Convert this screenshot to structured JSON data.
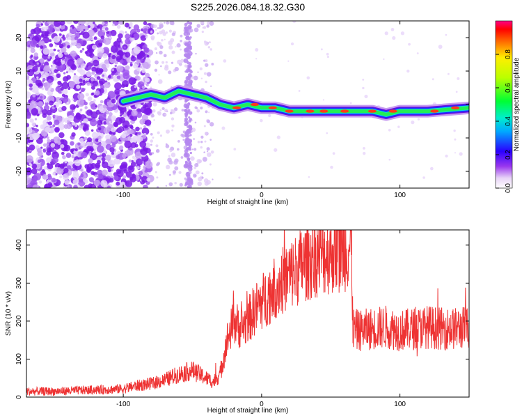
{
  "title": "S225.2026.084.18.32.G30",
  "chart_data": [
    {
      "type": "heatmap",
      "xlabel": "Height of straight line (km)",
      "ylabel": "Frequency (Hz)",
      "xlim": [
        -170,
        150
      ],
      "ylim": [
        -25,
        25
      ],
      "x_ticks": [
        -100,
        0,
        100
      ],
      "y_ticks": [
        -20,
        -10,
        0,
        10,
        20
      ],
      "colorbar": {
        "label": "Normalized spectral amplitude",
        "range": [
          0,
          1
        ],
        "ticks": [
          "0.0",
          "0.2",
          "0.4",
          "0.6",
          "0.8"
        ],
        "tick_values": [
          0,
          0.2,
          0.4,
          0.6,
          0.8
        ]
      },
      "ridge": {
        "x": [
          -100,
          -90,
          -80,
          -70,
          -60,
          -50,
          -40,
          -30,
          -20,
          -10,
          0,
          10,
          20,
          40,
          60,
          80,
          90,
          100,
          120,
          150
        ],
        "y": [
          1,
          2,
          3,
          2,
          4,
          3,
          2,
          0,
          -1,
          0,
          -1,
          -1,
          -2,
          -2,
          -2,
          -2,
          -3,
          -2,
          -2,
          -1
        ]
      }
    },
    {
      "type": "line",
      "xlabel": "Height of straight line (km)",
      "ylabel": "SNR (10 * v/v)",
      "xlim": [
        -170,
        150
      ],
      "ylim": [
        0,
        440
      ],
      "x_ticks": [
        -100,
        0,
        100
      ],
      "y_ticks": [
        0,
        100,
        200,
        300,
        400
      ],
      "series": [
        {
          "name": "SNR",
          "color": "#ee3333",
          "x": [
            -170,
            -150,
            -130,
            -110,
            -100,
            -90,
            -80,
            -70,
            -60,
            -50,
            -40,
            -35,
            -30,
            -25,
            -20,
            -15,
            -10,
            -5,
            0,
            10,
            20,
            30,
            40,
            50,
            60,
            65,
            66,
            70,
            80,
            90,
            100,
            110,
            120,
            130,
            140,
            150
          ],
          "values": [
            15,
            15,
            18,
            20,
            22,
            30,
            35,
            45,
            60,
            70,
            50,
            40,
            60,
            150,
            200,
            180,
            200,
            230,
            250,
            290,
            320,
            350,
            370,
            380,
            390,
            395,
            180,
            175,
            180,
            185,
            175,
            180,
            185,
            180,
            180,
            185
          ]
        }
      ]
    }
  ]
}
